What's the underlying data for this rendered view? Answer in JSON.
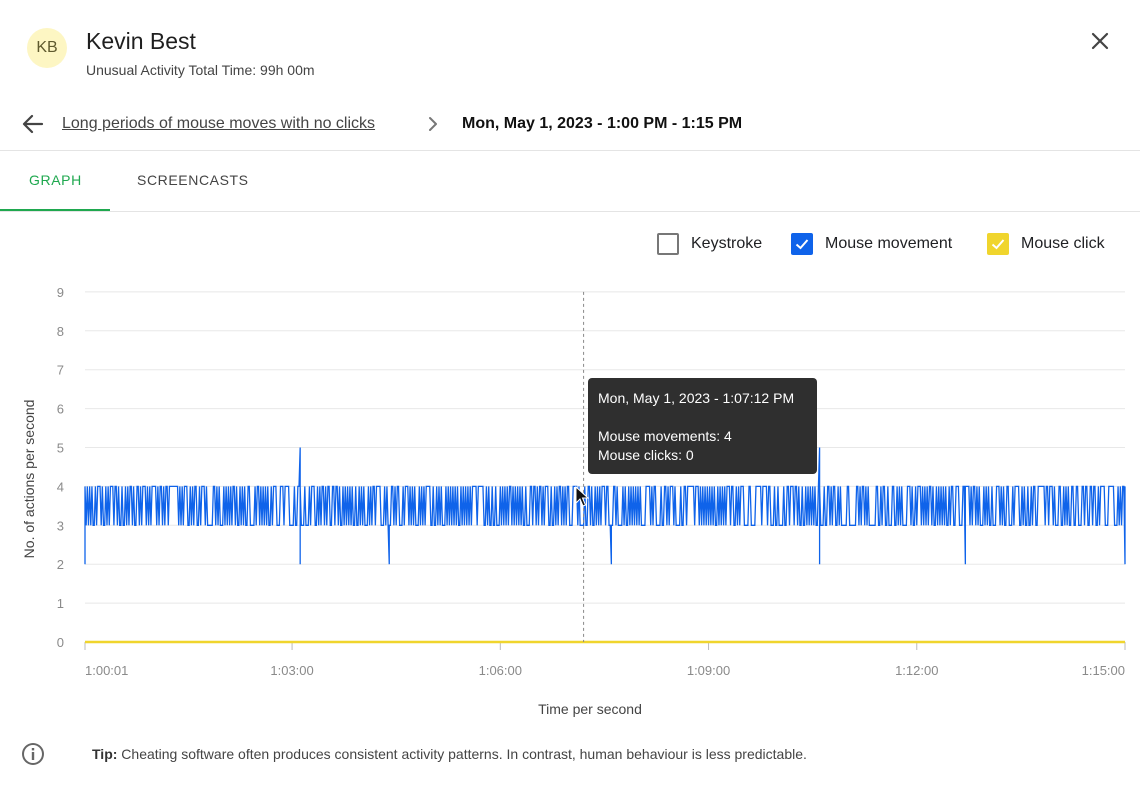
{
  "header": {
    "avatar_initials": "KB",
    "user_name": "Kevin Best",
    "subtitle": "Unusual Activity Total Time: 99h 00m",
    "close_icon": "close-icon"
  },
  "breadcrumb": {
    "back_icon": "arrow-left-icon",
    "parent": "Long periods of mouse moves with no clicks",
    "separator_icon": "chevron-right-icon",
    "current": "Mon, May 1, 2023 - 1:00 PM - 1:15 PM"
  },
  "tabs": [
    {
      "label": "GRAPH",
      "active": true
    },
    {
      "label": "SCREENCASTS",
      "active": false
    }
  ],
  "legend": [
    {
      "label": "Keystroke",
      "checked": false,
      "color": "#777777"
    },
    {
      "label": "Mouse movement",
      "checked": true,
      "color": "#0f63ea"
    },
    {
      "label": "Mouse click",
      "checked": true,
      "color": "#f0d52d"
    }
  ],
  "tooltip": {
    "time": "Mon, May 1, 2023 - 1:07:12 PM",
    "movements": "Mouse movements: 4",
    "clicks": "Mouse clicks: 0"
  },
  "tip": {
    "icon": "info-icon",
    "label": "Tip:",
    "text": "Cheating software often produces consistent activity patterns. In contrast, human behaviour is less predictable."
  },
  "chart_data": {
    "type": "line",
    "xlabel": "Time per second",
    "ylabel": "No. of actions per second",
    "ylim": [
      0,
      9
    ],
    "yticks": [
      "0",
      "1",
      "2",
      "3",
      "4",
      "5",
      "6",
      "7",
      "8",
      "9"
    ],
    "xlim": [
      "1:00:01",
      "1:15:00"
    ],
    "xticks": [
      "1:00:01",
      "1:03:00",
      "1:06:00",
      "1:09:00",
      "1:12:00",
      "1:15:00"
    ],
    "grid": true,
    "legend_position": "top-right",
    "hover_time": "1:07:12",
    "series": [
      {
        "name": "Mouse movement",
        "color": "#0f63ea",
        "pattern": "oscillates between 3 and 4 actions per second",
        "range": [
          3,
          4
        ],
        "spikes": [
          {
            "time": "1:00:01",
            "value": 2
          },
          {
            "time": "1:03:07",
            "value": 5
          },
          {
            "time": "1:03:07",
            "value": 2
          },
          {
            "time": "1:04:24",
            "value": 2
          },
          {
            "time": "1:07:36",
            "value": 2
          },
          {
            "time": "1:10:36",
            "value": 5
          },
          {
            "time": "1:10:36",
            "value": 2
          },
          {
            "time": "1:12:42",
            "value": 2
          },
          {
            "time": "1:15:00",
            "value": 2
          }
        ]
      },
      {
        "name": "Mouse click",
        "color": "#f0d52d",
        "values_constant": 0
      }
    ]
  }
}
